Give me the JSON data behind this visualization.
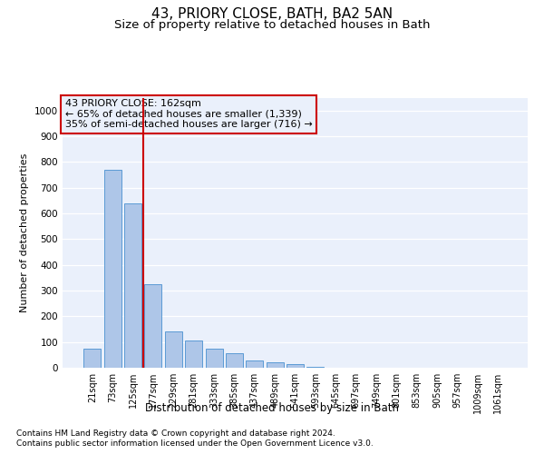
{
  "title1": "43, PRIORY CLOSE, BATH, BA2 5AN",
  "title2": "Size of property relative to detached houses in Bath",
  "xlabel": "Distribution of detached houses by size in Bath",
  "ylabel": "Number of detached properties",
  "footnote1": "Contains HM Land Registry data © Crown copyright and database right 2024.",
  "footnote2": "Contains public sector information licensed under the Open Government Licence v3.0.",
  "annotation_line1": "43 PRIORY CLOSE: 162sqm",
  "annotation_line2": "← 65% of detached houses are smaller (1,339)",
  "annotation_line3": "35% of semi-detached houses are larger (716) →",
  "bar_color": "#aec6e8",
  "bar_edge_color": "#5b9bd5",
  "vline_color": "#cc0000",
  "categories": [
    "21sqm",
    "73sqm",
    "125sqm",
    "177sqm",
    "229sqm",
    "281sqm",
    "333sqm",
    "385sqm",
    "437sqm",
    "489sqm",
    "541sqm",
    "593sqm",
    "645sqm",
    "697sqm",
    "749sqm",
    "801sqm",
    "853sqm",
    "905sqm",
    "957sqm",
    "1009sqm",
    "1061sqm"
  ],
  "values": [
    75,
    770,
    640,
    325,
    140,
    105,
    75,
    55,
    30,
    20,
    15,
    5,
    0,
    0,
    0,
    0,
    0,
    0,
    0,
    0,
    0
  ],
  "ylim": [
    0,
    1050
  ],
  "yticks": [
    0,
    100,
    200,
    300,
    400,
    500,
    600,
    700,
    800,
    900,
    1000
  ],
  "vline_x_index": 2.5,
  "bg_color": "#eaf0fb",
  "plot_bg_color": "#eaf0fb",
  "fig_bg_color": "#ffffff",
  "grid_color": "#ffffff",
  "title1_fontsize": 11,
  "title2_fontsize": 9.5,
  "annotation_box_edgecolor": "#cc0000",
  "annotation_fontsize": 8,
  "ylabel_fontsize": 8,
  "xlabel_fontsize": 8.5
}
